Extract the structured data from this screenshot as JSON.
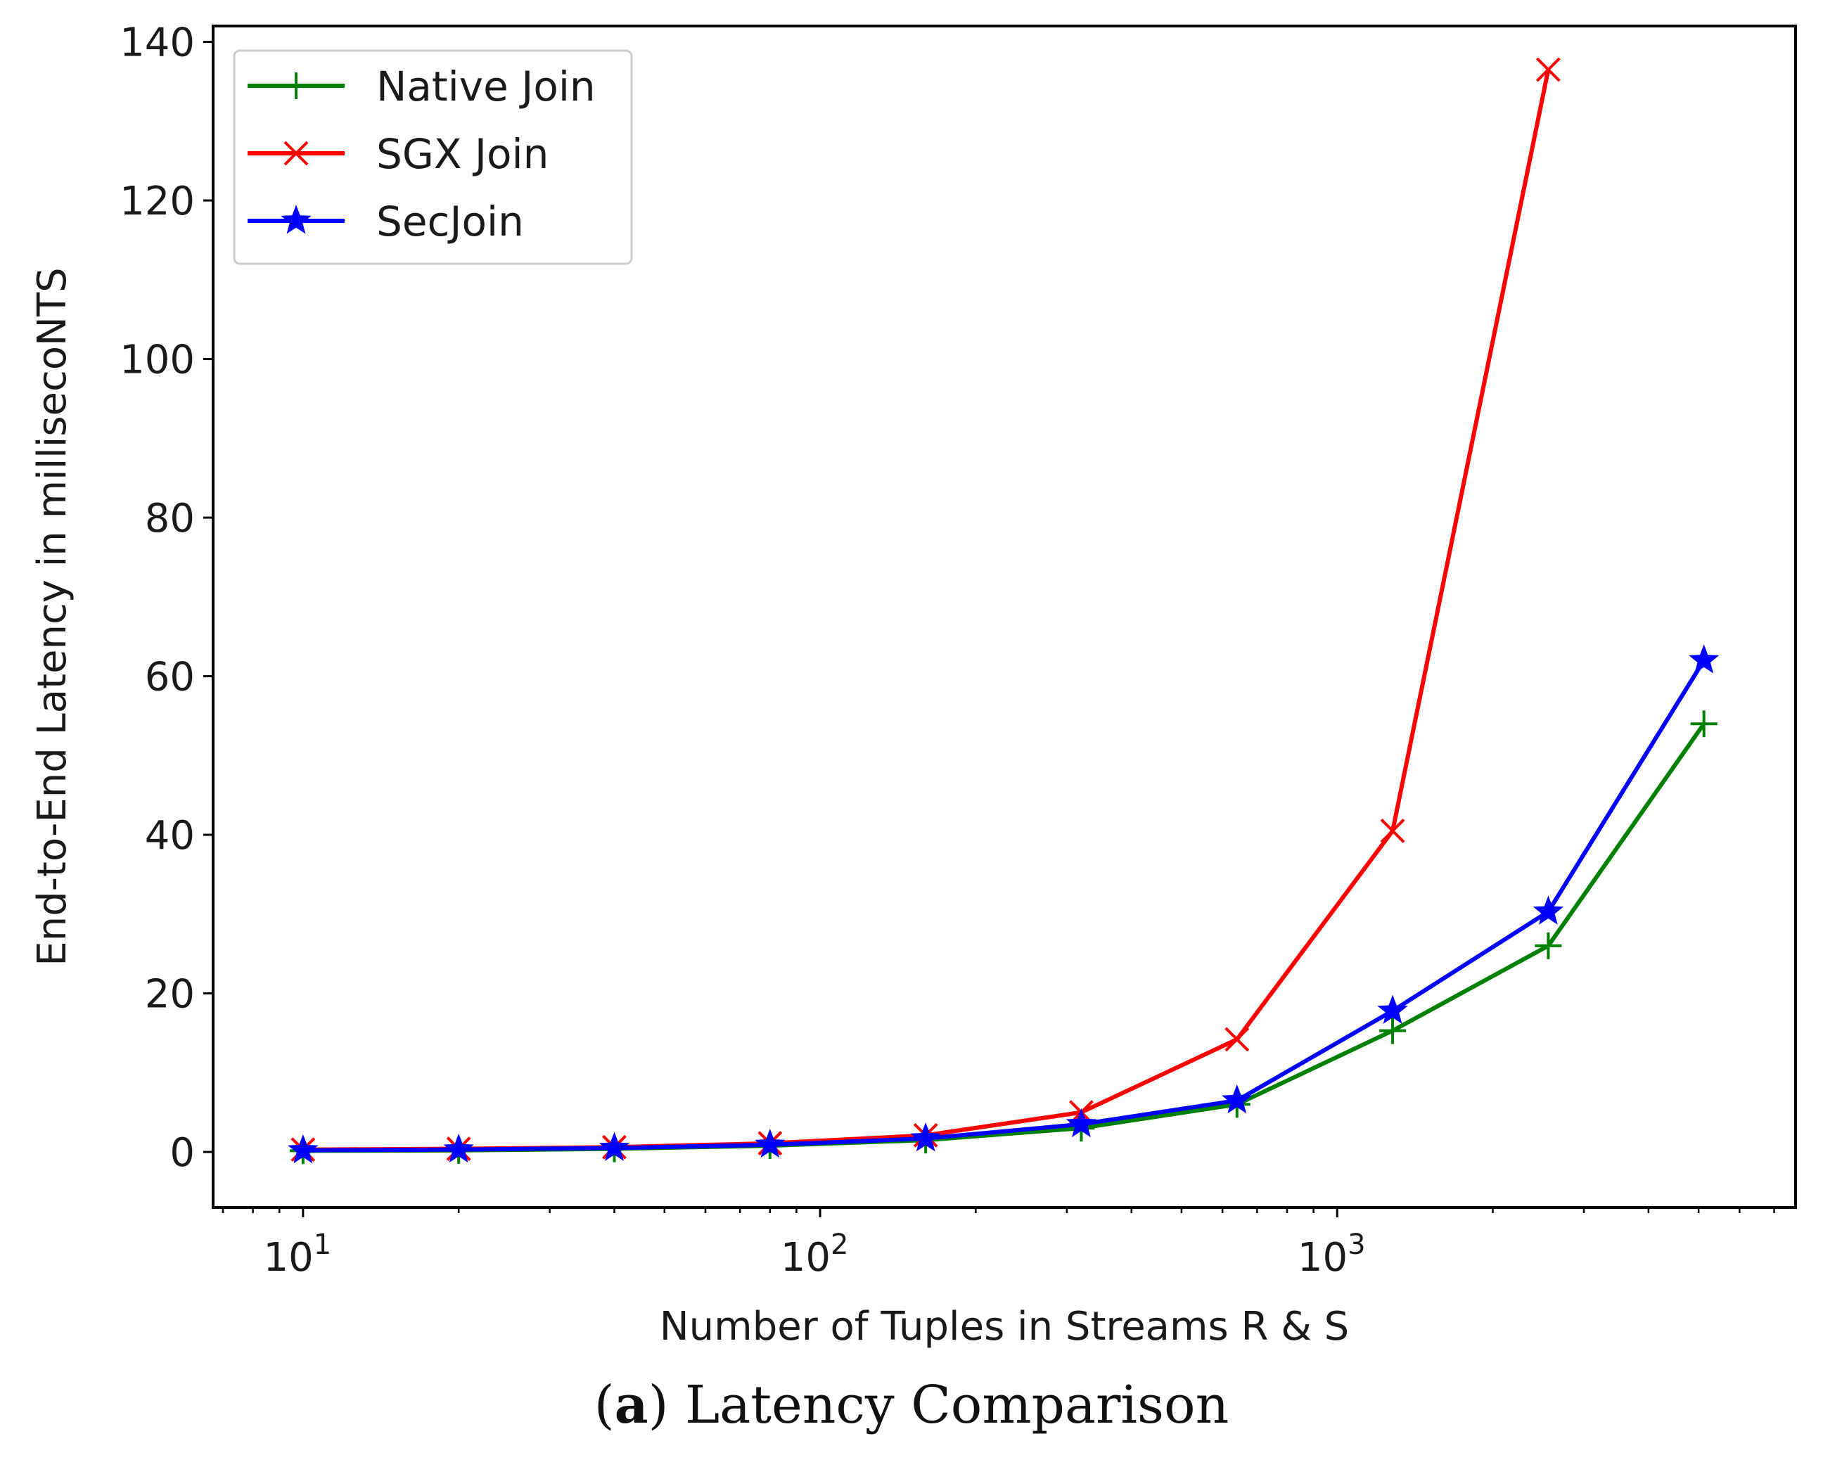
{
  "chart_data": {
    "type": "line",
    "xscale": "log",
    "x": [
      10,
      20,
      40,
      80,
      160,
      320,
      640,
      1280,
      2560,
      5120
    ],
    "xlim": [
      6.7,
      7700
    ],
    "ylim": [
      -7,
      142
    ],
    "yticks": [
      0,
      20,
      40,
      60,
      80,
      100,
      120,
      140
    ],
    "xticks": [
      {
        "value": 10,
        "base": "10",
        "exp": "1"
      },
      {
        "value": 100,
        "base": "10",
        "exp": "2"
      },
      {
        "value": 1000,
        "base": "10",
        "exp": "3"
      }
    ],
    "xlabel": "Number of Tuples in Streams R & S",
    "ylabel": "End-to-End Latency in millisecoNTS",
    "legend_position": "top-left",
    "series": [
      {
        "name": "Native Join",
        "color": "#008000",
        "marker": "plus",
        "values": [
          0.15,
          0.2,
          0.4,
          0.8,
          1.5,
          3.0,
          6.0,
          15.3,
          26.0,
          54.0
        ]
      },
      {
        "name": "SGX Join",
        "color": "#ff0000",
        "marker": "x",
        "values": [
          0.3,
          0.4,
          0.6,
          1.1,
          2.1,
          5.0,
          14.2,
          40.5,
          136.5,
          null
        ]
      },
      {
        "name": "SecJoin",
        "color": "#0000ff",
        "marker": "star",
        "values": [
          0.2,
          0.3,
          0.5,
          0.9,
          1.7,
          3.5,
          6.5,
          17.8,
          30.3,
          62.0
        ]
      }
    ]
  },
  "caption": {
    "label": "a",
    "text": "Latency Comparison"
  }
}
